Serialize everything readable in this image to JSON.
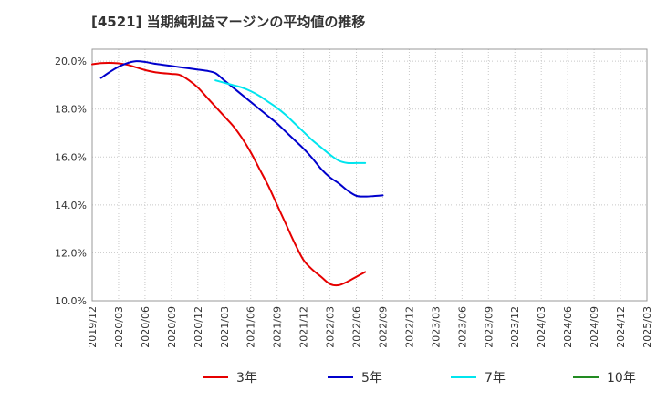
{
  "chart_data": {
    "type": "line",
    "title": "[4521]  当期純利益マージンの平均値の推移",
    "x_ticks": [
      "2019/12",
      "2020/03",
      "2020/06",
      "2020/09",
      "2020/12",
      "2021/03",
      "2021/06",
      "2021/09",
      "2021/12",
      "2022/03",
      "2022/06",
      "2022/09",
      "2022/12",
      "2023/03",
      "2023/06",
      "2023/09",
      "2023/12",
      "2024/03",
      "2024/06",
      "2024/09",
      "2024/12",
      "2025/03"
    ],
    "y_ticks": [
      "10.0%",
      "12.0%",
      "14.0%",
      "16.0%",
      "18.0%",
      "20.0%"
    ],
    "ylim": [
      10,
      20.5
    ],
    "legend_position": "bottom",
    "grid": true,
    "series": [
      {
        "name": "3年",
        "color": "#e60000",
        "points": [
          [
            0,
            19.87
          ],
          [
            1,
            19.92
          ],
          [
            2,
            19.93
          ],
          [
            3,
            19.91
          ],
          [
            4,
            19.85
          ],
          [
            5,
            19.74
          ],
          [
            6,
            19.63
          ],
          [
            7,
            19.55
          ],
          [
            8,
            19.5
          ],
          [
            9,
            19.47
          ],
          [
            10,
            19.42
          ],
          [
            11,
            19.2
          ],
          [
            12,
            18.9
          ],
          [
            13,
            18.5
          ],
          [
            14,
            18.1
          ],
          [
            15,
            17.7
          ],
          [
            16,
            17.3
          ],
          [
            17,
            16.8
          ],
          [
            18,
            16.2
          ],
          [
            19,
            15.5
          ],
          [
            20,
            14.8
          ],
          [
            21,
            14.0
          ],
          [
            22,
            13.2
          ],
          [
            23,
            12.4
          ],
          [
            24,
            11.7
          ],
          [
            25,
            11.3
          ],
          [
            26,
            11.0
          ],
          [
            27,
            10.7
          ],
          [
            28,
            10.65
          ],
          [
            29,
            10.8
          ],
          [
            30,
            11.0
          ],
          [
            31,
            11.2
          ]
        ]
      },
      {
        "name": "5年",
        "color": "#0000cc",
        "points": [
          [
            1,
            19.3
          ],
          [
            2,
            19.55
          ],
          [
            3,
            19.77
          ],
          [
            4,
            19.92
          ],
          [
            5,
            20.0
          ],
          [
            6,
            19.97
          ],
          [
            7,
            19.9
          ],
          [
            8,
            19.85
          ],
          [
            9,
            19.8
          ],
          [
            10,
            19.75
          ],
          [
            11,
            19.7
          ],
          [
            12,
            19.65
          ],
          [
            13,
            19.6
          ],
          [
            14,
            19.5
          ],
          [
            15,
            19.2
          ],
          [
            16,
            18.9
          ],
          [
            17,
            18.6
          ],
          [
            18,
            18.3
          ],
          [
            19,
            18.0
          ],
          [
            20,
            17.7
          ],
          [
            21,
            17.4
          ],
          [
            22,
            17.05
          ],
          [
            23,
            16.7
          ],
          [
            24,
            16.35
          ],
          [
            25,
            15.95
          ],
          [
            26,
            15.5
          ],
          [
            27,
            15.15
          ],
          [
            28,
            14.9
          ],
          [
            29,
            14.6
          ],
          [
            30,
            14.38
          ],
          [
            31,
            14.35
          ],
          [
            32,
            14.37
          ],
          [
            33,
            14.4
          ]
        ]
      },
      {
        "name": "7年",
        "color": "#00e5ee",
        "points": [
          [
            14,
            19.2
          ],
          [
            15,
            19.1
          ],
          [
            16,
            19.0
          ],
          [
            17,
            18.9
          ],
          [
            18,
            18.75
          ],
          [
            19,
            18.55
          ],
          [
            20,
            18.3
          ],
          [
            21,
            18.05
          ],
          [
            22,
            17.75
          ],
          [
            23,
            17.4
          ],
          [
            24,
            17.05
          ],
          [
            25,
            16.7
          ],
          [
            26,
            16.4
          ],
          [
            27,
            16.1
          ],
          [
            28,
            15.85
          ],
          [
            29,
            15.75
          ],
          [
            30,
            15.75
          ],
          [
            31,
            15.75
          ]
        ]
      },
      {
        "name": "10年",
        "color": "#228b22",
        "points": []
      }
    ]
  }
}
